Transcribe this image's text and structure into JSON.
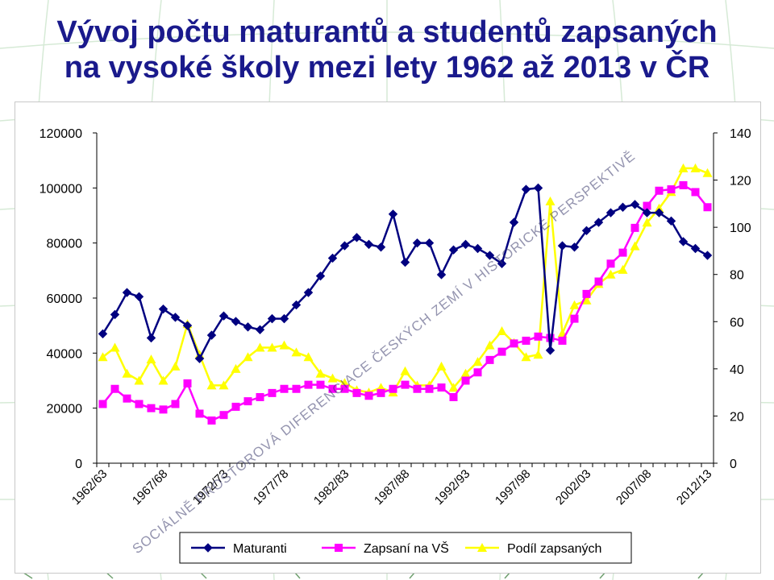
{
  "slide": {
    "title_line1": "Vývoj počtu maturantů a studentů zapsaných",
    "title_line2": "na vysoké školy mezi lety 1962 až 2013 v ČR",
    "watermark": "SOCIÁLNĚ PROSTOROVÁ DIFERENCIACE ČESKÝCH ZEMÍ V HISTORICKÉ PERSPEKTIVĚ"
  },
  "chart_data": {
    "type": "line",
    "title": "",
    "xlabel": "",
    "ylabel": "",
    "categories": [
      "1962/63",
      "1963/64",
      "1964/65",
      "1965/66",
      "1966/67",
      "1967/68",
      "1968/69",
      "1969/70",
      "1970/71",
      "1971/72",
      "1972/73",
      "1973/74",
      "1974/75",
      "1975/76",
      "1976/77",
      "1977/78",
      "1978/79",
      "1979/80",
      "1980/81",
      "1981/82",
      "1982/83",
      "1983/84",
      "1984/85",
      "1985/86",
      "1986/87",
      "1987/88",
      "1988/89",
      "1989/90",
      "1990/91",
      "1991/92",
      "1992/93",
      "1993/94",
      "1994/95",
      "1995/96",
      "1996/97",
      "1997/98",
      "1998/99",
      "1999/00",
      "2000/01",
      "2001/02",
      "2002/03",
      "2003/04",
      "2004/05",
      "2005/06",
      "2006/07",
      "2007/08",
      "2008/09",
      "2009/10",
      "2010/11",
      "2011/12",
      "2012/13"
    ],
    "x_tick_labels": [
      "1962/63",
      "1967/68",
      "1972/73",
      "1977/78",
      "1982/83",
      "1987/88",
      "1992/93",
      "1997/98",
      "2002/03",
      "2007/08",
      "2012/13"
    ],
    "ylim_left": [
      0,
      120000
    ],
    "yticks_left": [
      "0",
      "20000",
      "40000",
      "60000",
      "80000",
      "100000",
      "120000"
    ],
    "ylim_right": [
      0,
      140
    ],
    "yticks_right": [
      "0",
      "20",
      "40",
      "60",
      "80",
      "100",
      "120",
      "140"
    ],
    "grid": false,
    "legend_position": "bottom",
    "series": [
      {
        "name": "Maturanti",
        "axis": "left",
        "color": "#000080",
        "marker": "diamond",
        "values": [
          47000,
          54000,
          62000,
          60500,
          45500,
          56000,
          53000,
          50000,
          38000,
          46500,
          53500,
          51500,
          49500,
          48500,
          52500,
          52500,
          57500,
          62000,
          68000,
          74500,
          79000,
          82000,
          79500,
          78500,
          90500,
          73000,
          80000,
          80000,
          68500,
          77500,
          79500,
          78000,
          75500,
          72500,
          87500,
          99500,
          100000,
          41000,
          79000,
          78500,
          84500,
          87500,
          91000,
          93000,
          94000,
          91000,
          91000,
          88000,
          80500,
          78000,
          75500
        ]
      },
      {
        "name": "Zapsaní na VŠ",
        "axis": "left",
        "color": "#ff00ff",
        "marker": "square",
        "values": [
          21500,
          27000,
          23500,
          21500,
          20000,
          19500,
          21500,
          29000,
          18000,
          15500,
          17500,
          20500,
          22500,
          24000,
          25500,
          27000,
          27000,
          28500,
          28500,
          27000,
          27000,
          25500,
          24500,
          25500,
          27000,
          28500,
          27000,
          27000,
          27500,
          24000,
          30000,
          33000,
          37500,
          40500,
          43500,
          44500,
          46000,
          45500,
          44500,
          52500,
          61500,
          66000,
          72500,
          76500,
          85500,
          93500,
          99000,
          99500,
          101000,
          98500,
          93000
        ]
      },
      {
        "name": "Podíl zapsaných",
        "axis": "right",
        "color": "#ffff00",
        "marker": "triangle",
        "values": [
          45,
          49,
          38,
          35,
          44,
          35,
          41,
          59,
          46,
          33,
          33,
          40,
          45,
          49,
          49,
          50,
          47,
          45,
          38,
          36,
          34,
          31,
          30,
          32,
          30,
          39,
          33,
          33,
          41,
          32,
          38,
          43,
          50,
          56,
          51,
          45,
          46,
          111,
          55,
          67,
          69,
          76,
          80,
          82,
          92,
          102,
          108,
          115,
          125,
          125,
          123
        ]
      }
    ]
  }
}
